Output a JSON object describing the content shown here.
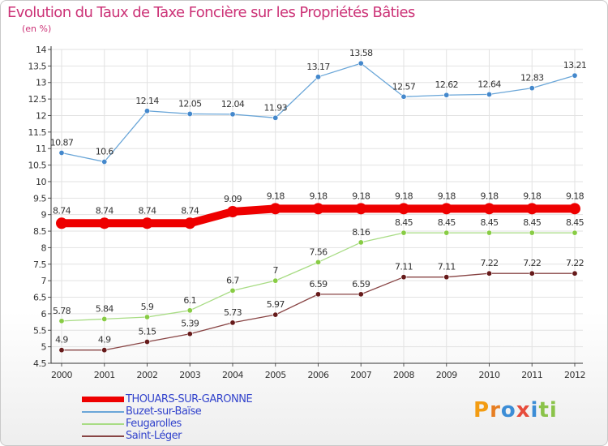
{
  "title": "Evolution du Taux de Taxe Foncière sur les Propriétés Bâties",
  "subtitle": "(en %)",
  "logo": {
    "text": "Proxiti",
    "letter_colors": [
      "#f39c12",
      "#e67e22",
      "#3c8dd6",
      "#e74c3c",
      "#3c8dd6",
      "#8bc34a",
      "#8bc34a"
    ]
  },
  "chart_data": {
    "type": "line",
    "title": "Evolution du Taux de Taxe Foncière sur les Propriétés Bâties",
    "ylabel": "(en %)",
    "xlabel": "",
    "x": [
      "2000",
      "2001",
      "2002",
      "2003",
      "2004",
      "2005",
      "2006",
      "2007",
      "2008",
      "2009",
      "2010",
      "2011",
      "2012"
    ],
    "ylim": [
      4.5,
      14
    ],
    "yticks": [
      "4.5",
      "5",
      "5.5",
      "6",
      "6.5",
      "7",
      "7.5",
      "8",
      "8.5",
      "9",
      "9.5",
      "10",
      "10.5",
      "11",
      "11.5",
      "12",
      "12.5",
      "13",
      "13.5",
      "14"
    ],
    "grid": true,
    "legend": "bottom-left",
    "series": [
      {
        "name": "Buzet-sur-Baïse",
        "color": "#6aa6d8",
        "marker": "#4488cc",
        "emphasis": false,
        "values": [
          10.87,
          10.6,
          12.14,
          12.05,
          12.04,
          11.93,
          13.17,
          13.58,
          12.57,
          12.62,
          12.64,
          12.83,
          13.21
        ],
        "labels": [
          "10.87",
          "10.6",
          "12.14",
          "12.05",
          "12.04",
          "11.93",
          "13.17",
          "13.58",
          "12.57",
          "12.62",
          "12.64",
          "12.83",
          "13.21"
        ]
      },
      {
        "name": "Feugarolles",
        "color": "#a8dc84",
        "marker": "#88cc44",
        "emphasis": false,
        "values": [
          5.78,
          5.84,
          5.9,
          6.1,
          6.7,
          7,
          7.56,
          8.16,
          8.45,
          8.45,
          8.45,
          8.45,
          8.45
        ],
        "labels": [
          "5.78",
          "5.84",
          "5.9",
          "6.1",
          "6.7",
          "7",
          "7.56",
          "8.16",
          "8.45",
          "8.45",
          "8.45",
          "8.45",
          "8.45"
        ]
      },
      {
        "name": "Saint-Léger",
        "color": "#884444",
        "marker": "#661a1a",
        "emphasis": false,
        "values": [
          4.9,
          4.9,
          5.15,
          5.39,
          5.73,
          5.97,
          6.59,
          6.59,
          7.11,
          7.11,
          7.22,
          7.22,
          7.22
        ],
        "labels": [
          "4.9",
          "4.9",
          "5.15",
          "5.39",
          "5.73",
          "5.97",
          "6.59",
          "6.59",
          "7.11",
          "7.11",
          "7.22",
          "7.22",
          "7.22"
        ]
      },
      {
        "name": "THOUARS-SUR-GARONNE",
        "color": "#ee0000",
        "marker": "#ee0000",
        "emphasis": true,
        "values": [
          8.74,
          8.74,
          8.74,
          8.74,
          9.09,
          9.18,
          9.18,
          9.18,
          9.18,
          9.18,
          9.18,
          9.18,
          9.18
        ],
        "labels": [
          "8.74",
          "8.74",
          "8.74",
          "8.74",
          "9.09",
          "9.18",
          "9.18",
          "9.18",
          "9.18",
          "9.18",
          "9.18",
          "9.18",
          "9.18"
        ]
      }
    ],
    "legend_order": [
      "THOUARS-SUR-GARONNE",
      "Buzet-sur-Baïse",
      "Feugarolles",
      "Saint-Léger"
    ]
  }
}
